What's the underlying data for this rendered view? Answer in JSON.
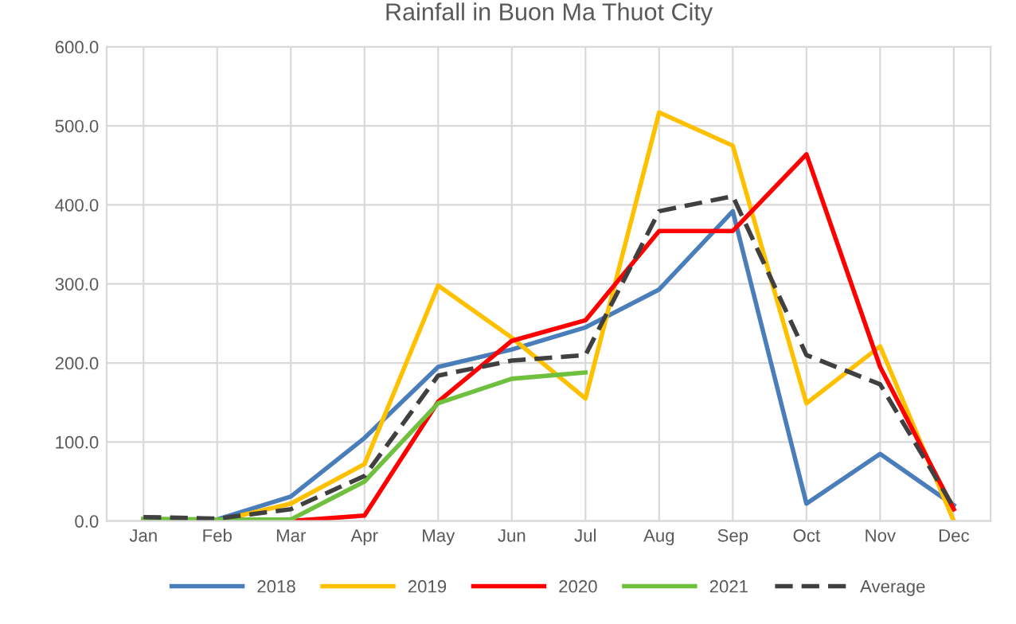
{
  "chart_data": {
    "type": "line",
    "title": "Rainfall in Buon Ma Thuot City",
    "categories": [
      "Jan",
      "Feb",
      "Mar",
      "Apr",
      "May",
      "Jun",
      "Jul",
      "Aug",
      "Sep",
      "Oct",
      "Nov",
      "Dec"
    ],
    "series": [
      {
        "name": "2018",
        "color": "#4a7ebb",
        "values": [
          2,
          2,
          31,
          105,
          195,
          217,
          245,
          293,
          392,
          22,
          85,
          20
        ]
      },
      {
        "name": "2019",
        "color": "#ffc000",
        "values": [
          0,
          0,
          22,
          72,
          298,
          232,
          155,
          517,
          475,
          149,
          221,
          0
        ]
      },
      {
        "name": "2020",
        "color": "#ff0000",
        "values": [
          0,
          0,
          0,
          7,
          151,
          228,
          254,
          367,
          367,
          464,
          195,
          15
        ]
      },
      {
        "name": "2021",
        "color": "#70c040",
        "values": [
          3,
          2,
          2,
          50,
          149,
          180,
          188,
          null,
          null,
          null,
          null,
          null
        ]
      },
      {
        "name": "Average",
        "color": "#404040",
        "line_style": "dashed",
        "values": [
          5,
          3,
          15,
          57,
          184,
          203,
          210,
          392,
          411,
          210,
          173,
          17
        ]
      }
    ],
    "ylim": [
      0,
      600
    ],
    "yticks": [
      {
        "value": 0,
        "label": "0.0"
      },
      {
        "value": 100,
        "label": "100.0"
      },
      {
        "value": 200,
        "label": "200.0"
      },
      {
        "value": 300,
        "label": "300.0"
      },
      {
        "value": 400,
        "label": "400.0"
      },
      {
        "value": 500,
        "label": "500.0"
      },
      {
        "value": 600,
        "label": "600.0"
      }
    ],
    "grid": true,
    "legend": "bottom",
    "marker": "none",
    "line_style": "solid"
  }
}
